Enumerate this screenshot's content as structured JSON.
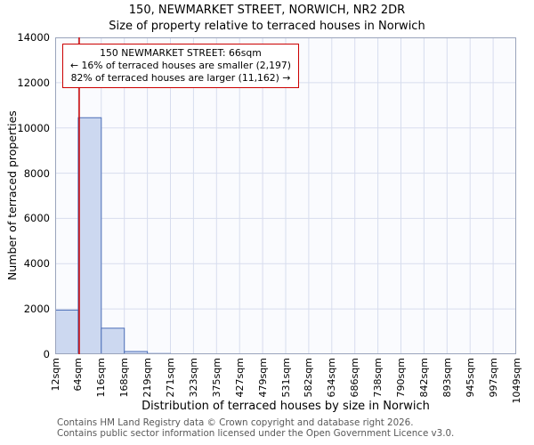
{
  "chart_data": {
    "type": "bar",
    "title": "150, NEWMARKET STREET, NORWICH, NR2 2DR",
    "subtitle": "Size of property relative to terraced houses in Norwich",
    "xlabel": "Distribution of terraced houses by size in Norwich",
    "ylabel": "Number of terraced properties",
    "ylim": [
      0,
      14000
    ],
    "yticks": [
      0,
      2000,
      4000,
      6000,
      8000,
      10000,
      12000,
      14000
    ],
    "x_tick_labels": [
      "12sqm",
      "64sqm",
      "116sqm",
      "168sqm",
      "219sqm",
      "271sqm",
      "323sqm",
      "375sqm",
      "427sqm",
      "479sqm",
      "531sqm",
      "582sqm",
      "634sqm",
      "686sqm",
      "738sqm",
      "790sqm",
      "842sqm",
      "893sqm",
      "945sqm",
      "997sqm",
      "1049sqm"
    ],
    "values": [
      1950,
      10450,
      1150,
      120,
      30,
      0,
      0,
      0,
      0,
      0,
      0,
      0,
      0,
      0,
      0,
      0,
      0,
      0,
      0,
      0
    ],
    "grid": true,
    "legend": "none",
    "bar_fill": "#ccd8f0",
    "bar_edge": "#4d6fb8",
    "grid_color": "#d7ddee",
    "spine_color": "#9aa4bc",
    "marker": {
      "value_sqm": 66,
      "axis_min_sqm": 12,
      "axis_max_sqm": 1049,
      "color": "#cc0000"
    },
    "annotation": {
      "line1": "150 NEWMARKET STREET: 66sqm",
      "line2": "← 16% of terraced houses are smaller (2,197)",
      "line3": "82% of terraced houses are larger (11,162) →"
    }
  },
  "footer": {
    "line1": "Contains HM Land Registry data © Crown copyright and database right 2026.",
    "line2": "Contains public sector information licensed under the Open Government Licence v3.0."
  }
}
